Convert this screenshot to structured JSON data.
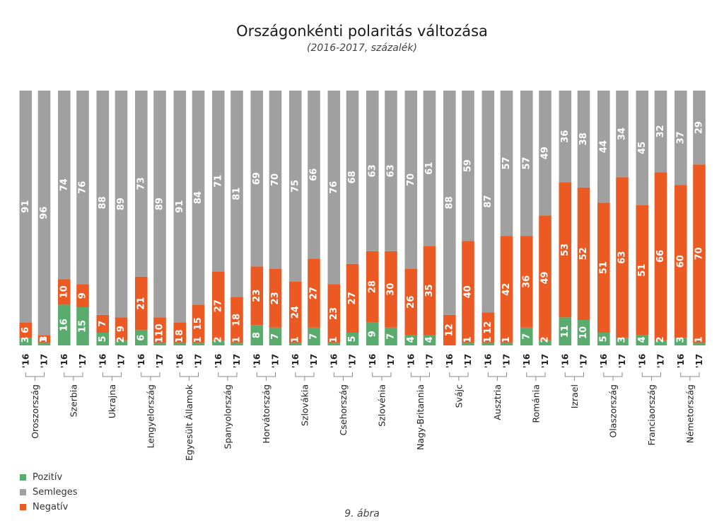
{
  "chart_data": {
    "type": "bar",
    "stacked": true,
    "orientation": "vertical",
    "title": "Országonkénti polaritás változása",
    "subtitle": "(2016-2017, százalék)",
    "footer": "9. ábra",
    "series_order": [
      "Pozitív",
      "Negatív",
      "Semleges"
    ],
    "legend": [
      {
        "name": "Pozitív",
        "color": "#5aab6e"
      },
      {
        "name": "Semleges",
        "color": "#a0a0a0"
      },
      {
        "name": "Negatív",
        "color": "#ec5a24"
      }
    ],
    "years": [
      "'16",
      "'17"
    ],
    "countries": [
      {
        "name": "Oroszország",
        "bars": [
          {
            "pos": 3,
            "neg": 6,
            "neu": 91
          },
          {
            "pos": 1,
            "neg": 3,
            "neu": 96
          }
        ]
      },
      {
        "name": "Szerbia",
        "bars": [
          {
            "pos": 16,
            "neg": 10,
            "neu": 74
          },
          {
            "pos": 15,
            "neg": 9,
            "neu": 76
          }
        ]
      },
      {
        "name": "Ukrajna",
        "bars": [
          {
            "pos": 5,
            "neg": 7,
            "neu": 88
          },
          {
            "pos": 2,
            "neg": 9,
            "neu": 89
          }
        ]
      },
      {
        "name": "Lengyelország",
        "bars": [
          {
            "pos": 6,
            "neg": 21,
            "neu": 73
          },
          {
            "pos": 1,
            "neg": 10,
            "neu": 89
          }
        ]
      },
      {
        "name": "Egyesült Államok",
        "bars": [
          {
            "pos": 1,
            "neg": 8,
            "neu": 91
          },
          {
            "pos": 1,
            "neg": 15,
            "neu": 84
          }
        ]
      },
      {
        "name": "Spanyolország",
        "bars": [
          {
            "pos": 2,
            "neg": 27,
            "neu": 71
          },
          {
            "pos": 1,
            "neg": 18,
            "neu": 81
          }
        ]
      },
      {
        "name": "Horvátország",
        "bars": [
          {
            "pos": 8,
            "neg": 23,
            "neu": 69
          },
          {
            "pos": 7,
            "neg": 23,
            "neu": 70
          }
        ]
      },
      {
        "name": "Szlovákia",
        "bars": [
          {
            "pos": 1,
            "neg": 24,
            "neu": 75
          },
          {
            "pos": 7,
            "neg": 27,
            "neu": 66
          }
        ]
      },
      {
        "name": "Csehország",
        "bars": [
          {
            "pos": 1,
            "neg": 23,
            "neu": 76
          },
          {
            "pos": 5,
            "neg": 27,
            "neu": 68
          }
        ]
      },
      {
        "name": "Szlovénia",
        "bars": [
          {
            "pos": 9,
            "neg": 28,
            "neu": 63
          },
          {
            "pos": 7,
            "neg": 30,
            "neu": 63
          }
        ]
      },
      {
        "name": "Nagy-Britannia",
        "bars": [
          {
            "pos": 4,
            "neg": 26,
            "neu": 70
          },
          {
            "pos": 4,
            "neg": 35,
            "neu": 61
          }
        ]
      },
      {
        "name": "Svájc",
        "bars": [
          {
            "pos": 0,
            "neg": 12,
            "neu": 88
          },
          {
            "pos": 1,
            "neg": 40,
            "neu": 59
          }
        ]
      },
      {
        "name": "Ausztria",
        "bars": [
          {
            "pos": 1,
            "neg": 12,
            "neu": 87
          },
          {
            "pos": 1,
            "neg": 42,
            "neu": 57
          }
        ]
      },
      {
        "name": "Románia",
        "bars": [
          {
            "pos": 7,
            "neg": 36,
            "neu": 57
          },
          {
            "pos": 2,
            "neg": 49,
            "neu": 49
          }
        ]
      },
      {
        "name": "Izrael",
        "bars": [
          {
            "pos": 11,
            "neg": 53,
            "neu": 36
          },
          {
            "pos": 10,
            "neg": 52,
            "neu": 38
          }
        ]
      },
      {
        "name": "Olaszország",
        "bars": [
          {
            "pos": 5,
            "neg": 51,
            "neu": 44
          },
          {
            "pos": 3,
            "neg": 63,
            "neu": 34
          }
        ]
      },
      {
        "name": "Franciaország",
        "bars": [
          {
            "pos": 4,
            "neg": 51,
            "neu": 45
          },
          {
            "pos": 2,
            "neg": 66,
            "neu": 32
          }
        ]
      },
      {
        "name": "Németország",
        "bars": [
          {
            "pos": 3,
            "neg": 60,
            "neu": 37
          },
          {
            "pos": 1,
            "neg": 70,
            "neu": 29
          }
        ]
      }
    ]
  }
}
